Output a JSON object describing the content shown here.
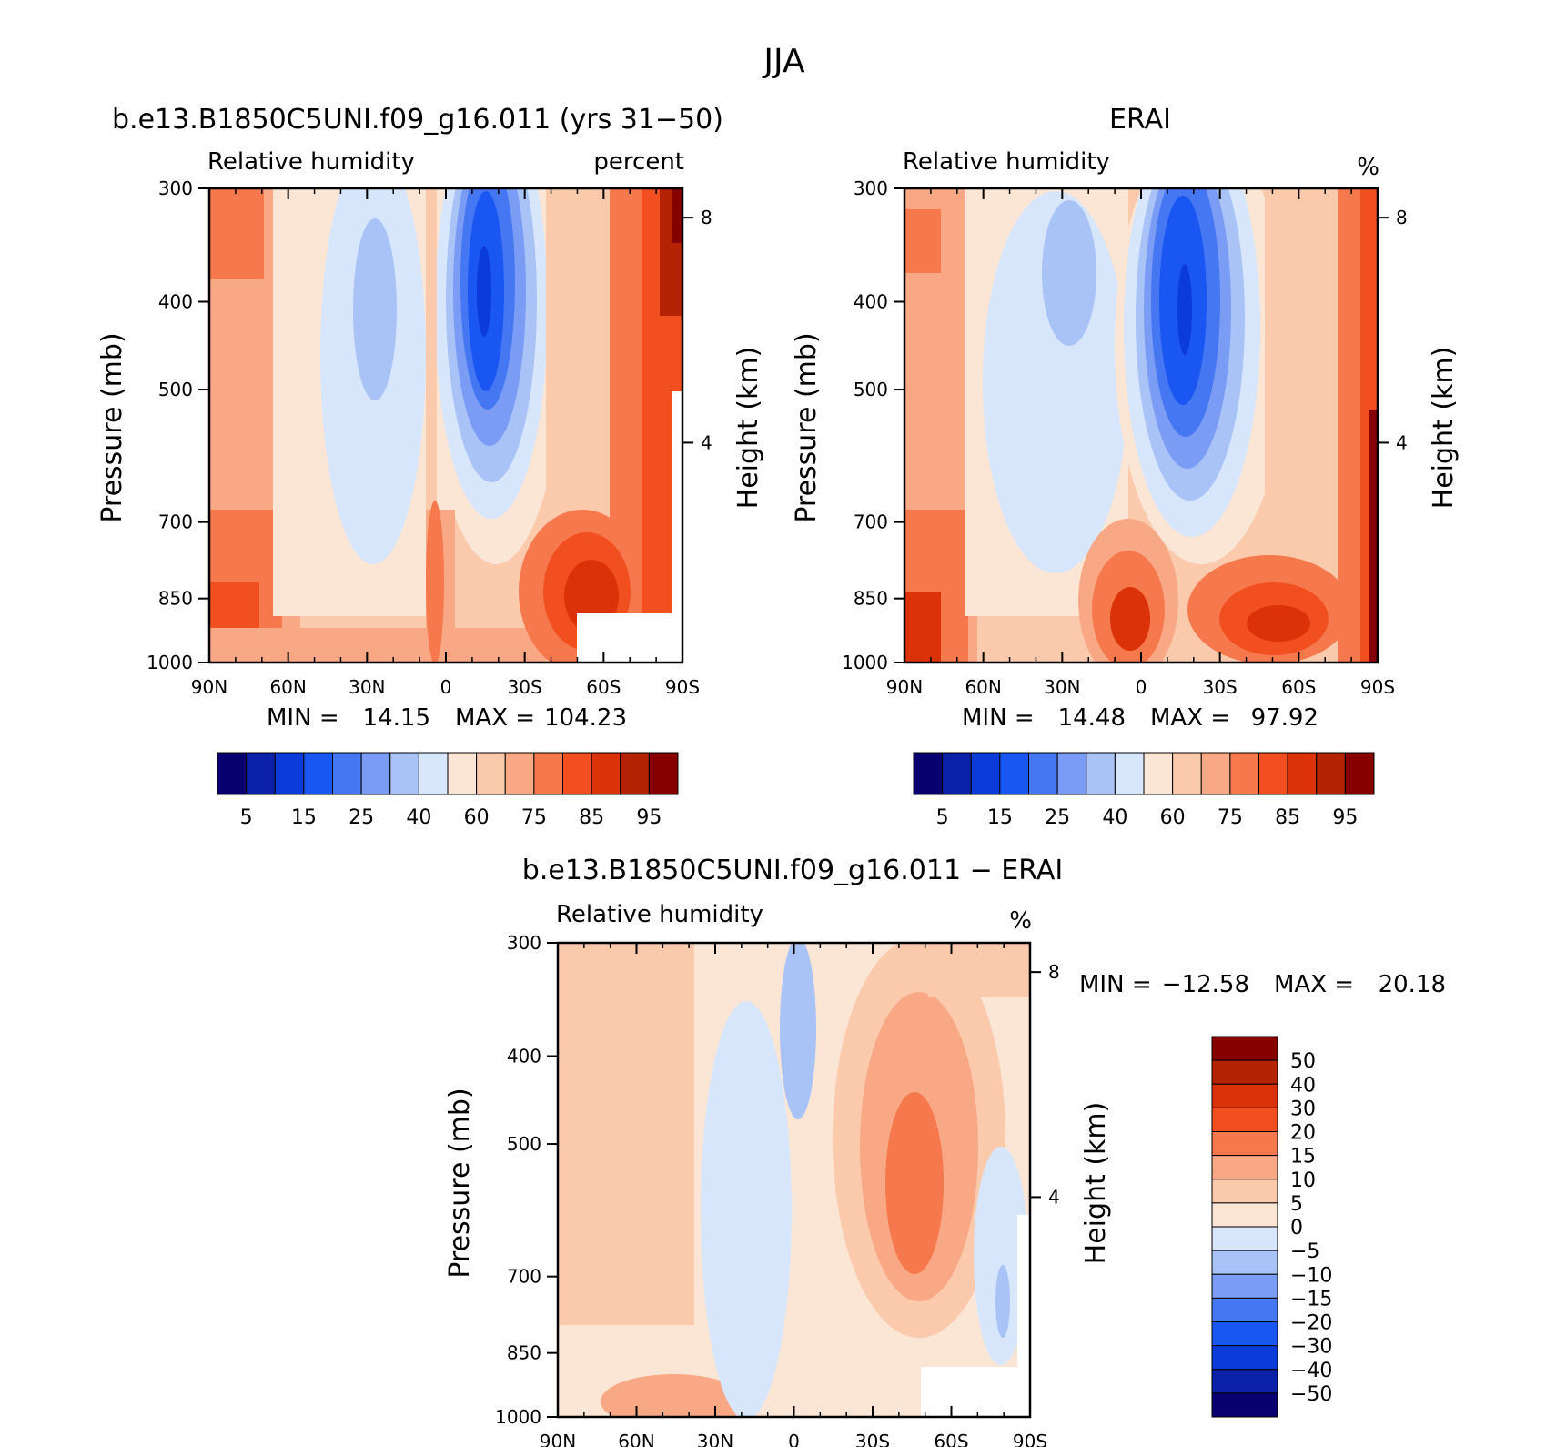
{
  "page_title": "JJA",
  "chart_data": [
    {
      "type": "heatmap",
      "title": "b.e13.B1850C5UNI.f09_g16.011 (yrs 31−50)",
      "subtitle_left": "Relative humidity",
      "subtitle_right": "percent",
      "ylabel": "Pressure (mb)",
      "ylabel_right": "Height (km)",
      "x_ticks": [
        "90N",
        "60N",
        "30N",
        "0",
        "30S",
        "60S",
        "90S"
      ],
      "y_ticks": [
        "300",
        "400",
        "500",
        "700",
        "850",
        "1000"
      ],
      "y_ticks_right": [
        "8",
        "4"
      ],
      "ylim": [
        1000,
        300
      ],
      "stats": {
        "min_label": "MIN =",
        "min": "14.15",
        "max_label": "MAX =",
        "max": "104.23"
      },
      "colorbar": {
        "levels": [
          5,
          10,
          15,
          20,
          25,
          30,
          40,
          50,
          60,
          70,
          75,
          80,
          85,
          90,
          95
        ],
        "labels": [
          "5",
          "15",
          "25",
          "40",
          "60",
          "75",
          "85",
          "95"
        ],
        "colors": [
          "#08006e",
          "#0a21a8",
          "#0b3bd8",
          "#1956f2",
          "#4677f3",
          "#7a9cf4",
          "#a9c3f7",
          "#d7e6fa",
          "#fbe6d6",
          "#fbc9ac",
          "#f8a884",
          "#f6794d",
          "#f24f20",
          "#db3209",
          "#b52305",
          "#860000"
        ]
      }
    },
    {
      "type": "heatmap",
      "title": "ERAI",
      "subtitle_left": "Relative humidity",
      "subtitle_right": "%",
      "ylabel": "Pressure (mb)",
      "ylabel_right": "Height (km)",
      "x_ticks": [
        "90N",
        "60N",
        "30N",
        "0",
        "30S",
        "60S",
        "90S"
      ],
      "y_ticks": [
        "300",
        "400",
        "500",
        "700",
        "850",
        "1000"
      ],
      "y_ticks_right": [
        "8",
        "4"
      ],
      "ylim": [
        1000,
        300
      ],
      "stats": {
        "min_label": "MIN =",
        "min": "14.48",
        "max_label": "MAX =",
        "max": "97.92"
      },
      "colorbar": {
        "levels": [
          5,
          10,
          15,
          20,
          25,
          30,
          40,
          50,
          60,
          70,
          75,
          80,
          85,
          90,
          95
        ],
        "labels": [
          "5",
          "15",
          "25",
          "40",
          "60",
          "75",
          "85",
          "95"
        ],
        "colors": [
          "#08006e",
          "#0a21a8",
          "#0b3bd8",
          "#1956f2",
          "#4677f3",
          "#7a9cf4",
          "#a9c3f7",
          "#d7e6fa",
          "#fbe6d6",
          "#fbc9ac",
          "#f8a884",
          "#f6794d",
          "#f24f20",
          "#db3209",
          "#b52305",
          "#860000"
        ]
      }
    },
    {
      "type": "heatmap",
      "title": "b.e13.B1850C5UNI.f09_g16.011 − ERAI",
      "subtitle_left": "Relative humidity",
      "subtitle_right": "%",
      "ylabel": "Pressure (mb)",
      "ylabel_right": "Height (km)",
      "x_ticks": [
        "90N",
        "60N",
        "30N",
        "0",
        "30S",
        "60S",
        "90S"
      ],
      "y_ticks": [
        "300",
        "400",
        "500",
        "700",
        "850",
        "1000"
      ],
      "y_ticks_right": [
        "8",
        "4"
      ],
      "ylim": [
        1000,
        300
      ],
      "stats": {
        "min_label": "MIN =",
        "min": "−12.58",
        "max_label": "MAX =",
        "max": "20.18"
      },
      "colorbar": {
        "levels": [
          -50,
          -40,
          -30,
          -20,
          -15,
          -10,
          -5,
          0,
          5,
          10,
          15,
          20,
          30,
          40,
          50
        ],
        "labels": [
          "−50",
          "−40",
          "−30",
          "−20",
          "−15",
          "−10",
          "−5",
          "0",
          "5",
          "10",
          "15",
          "20",
          "30",
          "40",
          "50"
        ],
        "colors": [
          "#08006e",
          "#0a21a8",
          "#0b3bd8",
          "#1956f2",
          "#4677f3",
          "#7a9cf4",
          "#a9c3f7",
          "#d7e6fa",
          "#fbe6d6",
          "#fbc9ac",
          "#f8a884",
          "#f6794d",
          "#f24f20",
          "#db3209",
          "#b52305",
          "#860000"
        ]
      }
    }
  ]
}
